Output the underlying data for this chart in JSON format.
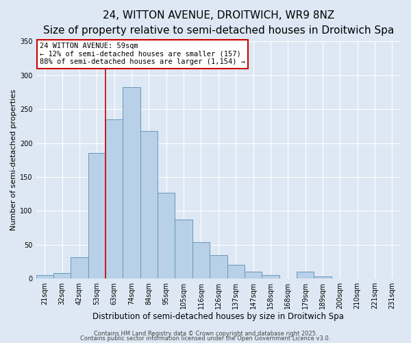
{
  "title": "24, WITTON AVENUE, DROITWICH, WR9 8NZ",
  "subtitle": "Size of property relative to semi-detached houses in Droitwich Spa",
  "xlabel": "Distribution of semi-detached houses by size in Droitwich Spa",
  "ylabel": "Number of semi-detached properties",
  "bin_labels": [
    "21sqm",
    "32sqm",
    "42sqm",
    "53sqm",
    "63sqm",
    "74sqm",
    "84sqm",
    "95sqm",
    "105sqm",
    "116sqm",
    "126sqm",
    "137sqm",
    "147sqm",
    "158sqm",
    "168sqm",
    "179sqm",
    "189sqm",
    "200sqm",
    "210sqm",
    "221sqm",
    "231sqm"
  ],
  "bar_heights": [
    5,
    8,
    31,
    185,
    235,
    283,
    218,
    127,
    87,
    54,
    35,
    20,
    10,
    5,
    0,
    10,
    3,
    0,
    0,
    0,
    0
  ],
  "bar_color": "#b8d0e8",
  "bar_edge_color": "#6699bb",
  "bar_width": 1.0,
  "vline_x_idx": 4,
  "vline_color": "#cc0000",
  "annotation_title": "24 WITTON AVENUE: 59sqm",
  "annotation_line1": "← 12% of semi-detached houses are smaller (157)",
  "annotation_line2": "88% of semi-detached houses are larger (1,154) →",
  "annotation_box_color": "white",
  "annotation_box_edge": "#cc0000",
  "ylim": [
    0,
    350
  ],
  "yticks": [
    0,
    50,
    100,
    150,
    200,
    250,
    300,
    350
  ],
  "background_color": "#dde8f4",
  "plot_bg_color": "#dde8f4",
  "footer_line1": "Contains HM Land Registry data © Crown copyright and database right 2025.",
  "footer_line2": "Contains public sector information licensed under the Open Government Licence v3.0.",
  "title_fontsize": 11,
  "subtitle_fontsize": 9,
  "xlabel_fontsize": 8.5,
  "ylabel_fontsize": 8,
  "tick_fontsize": 7,
  "annot_fontsize": 7.5,
  "footer_fontsize": 6
}
